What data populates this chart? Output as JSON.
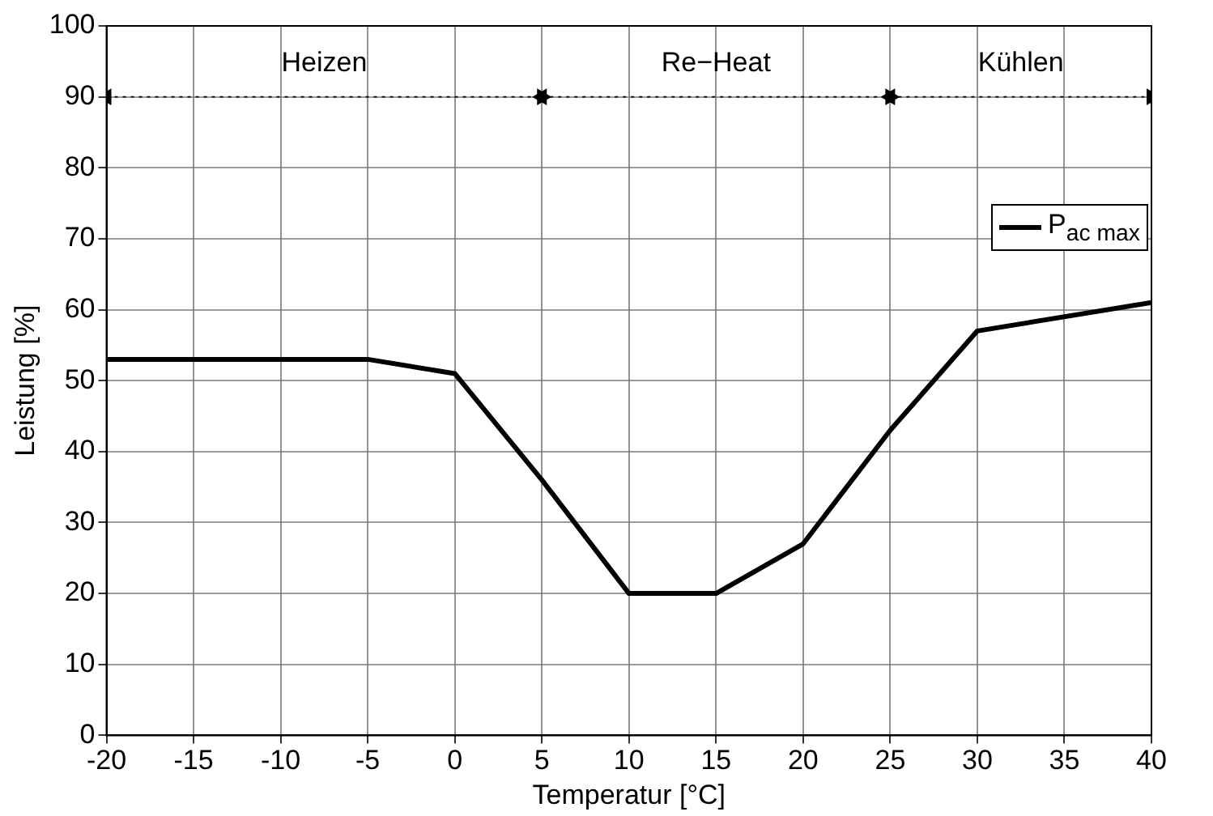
{
  "chart_data": {
    "type": "line",
    "xlabel": "Temperatur [°C]",
    "ylabel": "Leistung [%]",
    "x": [
      -20,
      -5,
      0,
      5,
      10,
      15,
      20,
      25,
      30,
      40
    ],
    "series": [
      {
        "name": "P$_{ac max}$",
        "color": "#000000",
        "values": [
          53,
          53,
          51,
          36,
          20,
          20,
          27,
          43,
          57,
          61
        ]
      },
      {
        "color": "#000000",
        "x": [
          -20,
          5
        ],
        "values": [
          90,
          90
        ],
        "line_style": "dotted",
        "marker": "triangle"
      },
      {
        "color": "#000000",
        "x": [
          5,
          25
        ],
        "values": [
          90,
          90
        ],
        "line_style": "dotted",
        "marker": "triangle"
      },
      {
        "color": "#000000",
        "x": [
          25,
          40
        ],
        "values": [
          90,
          90
        ],
        "line_style": "dotted",
        "marker": "triangle"
      }
    ],
    "annotations": [
      "Heizen",
      "Re−Heat",
      "Kühlen"
    ],
    "xlim": [
      -20,
      40
    ],
    "xticks": [
      -20,
      -15,
      -10,
      -5,
      0,
      5,
      10,
      15,
      20,
      25,
      30,
      35,
      40
    ],
    "ylim": [
      0,
      100
    ],
    "yticks": [
      0,
      10,
      20,
      30,
      40,
      50,
      60,
      70,
      80,
      90,
      100
    ],
    "grid": true,
    "legend": "top right",
    "marker": "none",
    "line_style": "solid"
  }
}
